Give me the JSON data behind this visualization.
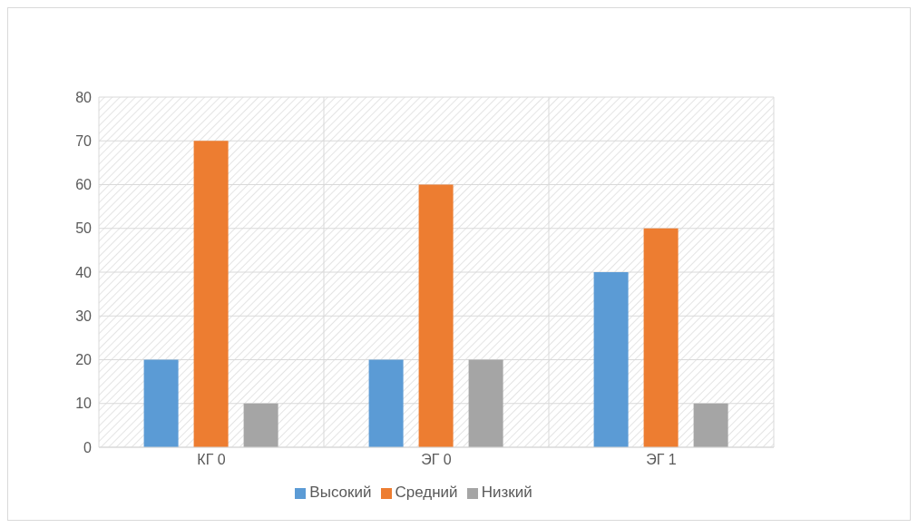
{
  "chart_data": {
    "type": "bar",
    "categories": [
      "КГ 0",
      "ЭГ 0",
      "ЭГ 1"
    ],
    "series": [
      {
        "name": "Высокий",
        "color": "#5b9bd5",
        "values": [
          20,
          20,
          40
        ]
      },
      {
        "name": "Средний",
        "color": "#ed7d31",
        "values": [
          70,
          60,
          50
        ]
      },
      {
        "name": "Низкий",
        "color": "#a5a5a5",
        "values": [
          10,
          20,
          10
        ]
      }
    ],
    "ylim": [
      0,
      80
    ],
    "yticks": [
      0,
      10,
      20,
      30,
      40,
      50,
      60,
      70,
      80
    ],
    "grid": true,
    "legend": "bottom"
  }
}
